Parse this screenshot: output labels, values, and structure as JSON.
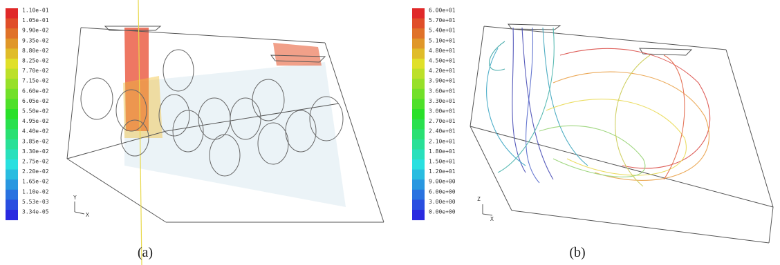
{
  "panels": [
    {
      "caption": "(a)",
      "colorbar": [
        "1.10e-01",
        "1.05e-01",
        "9.90e-02",
        "9.35e-02",
        "8.80e-02",
        "8.25e-02",
        "7.70e-02",
        "7.15e-02",
        "6.60e-02",
        "6.05e-02",
        "5.50e-02",
        "4.95e-02",
        "4.40e-02",
        "3.85e-02",
        "3.30e-02",
        "2.75e-02",
        "2.20e-02",
        "1.65e-02",
        "1.10e-02",
        "5.53e-03",
        "3.34e-05"
      ],
      "axes": [
        "Y",
        "X"
      ]
    },
    {
      "caption": "(b)",
      "colorbar": [
        "6.00e+01",
        "5.70e+01",
        "5.40e+01",
        "5.10e+01",
        "4.80e+01",
        "4.50e+01",
        "4.20e+01",
        "3.90e+01",
        "3.60e+01",
        "3.30e+01",
        "3.00e+01",
        "2.70e+01",
        "2.40e+01",
        "2.10e+01",
        "1.80e+01",
        "1.50e+01",
        "1.20e+01",
        "9.00e+00",
        "6.00e+00",
        "3.00e+00",
        "0.00e+00"
      ],
      "axes": [
        "Z",
        "X"
      ]
    }
  ]
}
